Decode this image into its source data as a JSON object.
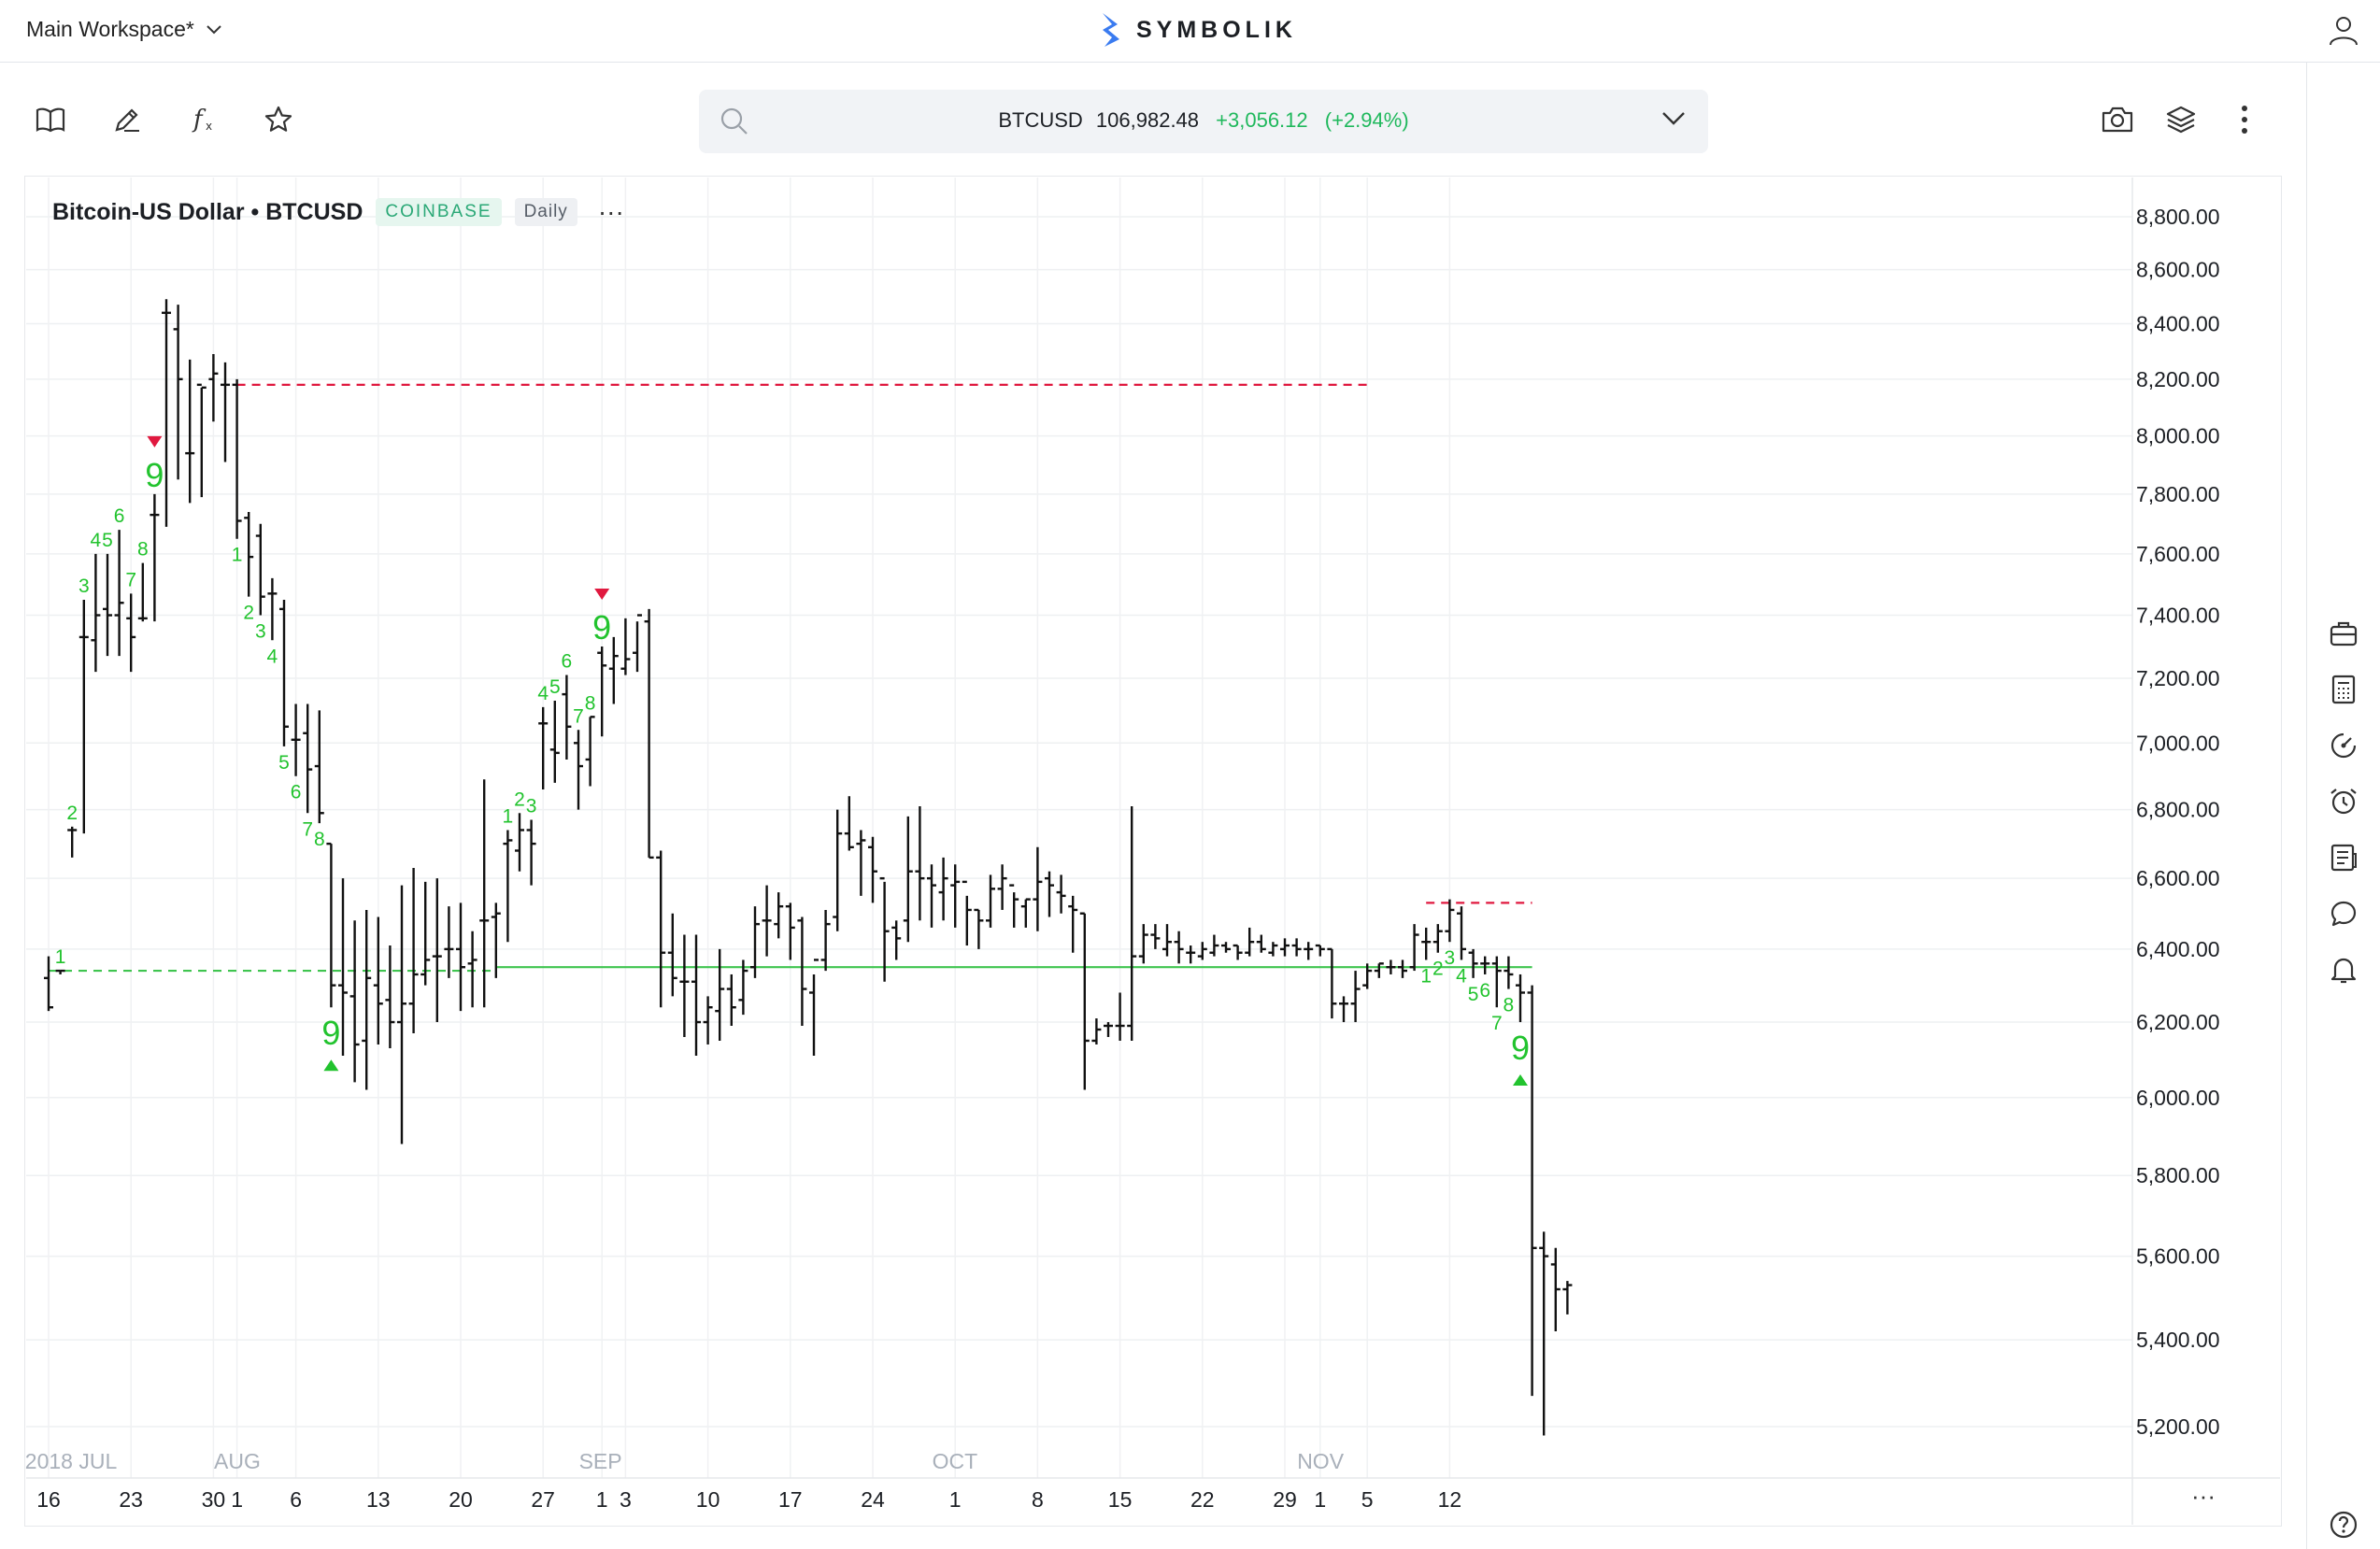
{
  "topbar": {
    "workspace_label": "Main Workspace*",
    "logo_text": "SYMBOLIK"
  },
  "search": {
    "symbol": "BTCUSD",
    "price": "106,982.48",
    "change": "+3,056.12",
    "change_pct": "(+2.94%)"
  },
  "toolbar": {
    "left_icons": [
      "book-icon",
      "pencil-icon",
      "fx-icon",
      "star-icon"
    ],
    "right_icons": [
      "camera-icon",
      "layers-icon",
      "more-vertical-icon"
    ]
  },
  "sidebar": {
    "icons": [
      "briefcase-icon",
      "calculator-icon",
      "gauge-icon",
      "alarm-clock-icon",
      "news-icon",
      "chat-icon",
      "bell-icon",
      "help-icon"
    ]
  },
  "chart_header": {
    "title": "Bitcoin-US Dollar • BTCUSD",
    "exchange": "COINBASE",
    "interval": "Daily",
    "more": "···"
  },
  "colors": {
    "up": "#1fb85c",
    "bar": "#111111",
    "resistance": "#e0193f",
    "support": "#3fc44f",
    "counter": "#22c32e"
  },
  "chart_data": {
    "type": "ohlc",
    "title": "Bitcoin-US Dollar • BTCUSD",
    "interval": "Daily",
    "exchange": "COINBASE",
    "ylim": [
      5100,
      8900
    ],
    "y_ticks": [
      "8,800.00",
      "8,600.00",
      "8,400.00",
      "8,200.00",
      "8,000.00",
      "7,800.00",
      "7,600.00",
      "7,400.00",
      "7,200.00",
      "7,000.00",
      "6,800.00",
      "6,600.00",
      "6,400.00",
      "6,200.00",
      "6,000.00",
      "5,800.00",
      "5,600.00",
      "5,400.00",
      "5,200.00"
    ],
    "y_tick_values": [
      8800,
      8600,
      8400,
      8200,
      8000,
      7800,
      7600,
      7400,
      7200,
      7000,
      6800,
      6600,
      6400,
      6200,
      6000,
      5800,
      5600,
      5400,
      5200
    ],
    "month_labels": [
      {
        "label": "2018 JUL",
        "day": -2
      },
      {
        "label": "AUG",
        "day": 15
      },
      {
        "label": "SEP",
        "day": 46
      },
      {
        "label": "OCT",
        "day": 76
      },
      {
        "label": "NOV",
        "day": 107
      }
    ],
    "day_labels": [
      {
        "label": "16",
        "day": 0
      },
      {
        "label": "23",
        "day": 7
      },
      {
        "label": "30",
        "day": 14
      },
      {
        "label": "1",
        "day": 16
      },
      {
        "label": "6",
        "day": 21
      },
      {
        "label": "13",
        "day": 28
      },
      {
        "label": "20",
        "day": 35
      },
      {
        "label": "27",
        "day": 42
      },
      {
        "label": "1",
        "day": 47
      },
      {
        "label": "3",
        "day": 49
      },
      {
        "label": "10",
        "day": 56
      },
      {
        "label": "17",
        "day": 63
      },
      {
        "label": "24",
        "day": 70
      },
      {
        "label": "1",
        "day": 77
      },
      {
        "label": "8",
        "day": 84
      },
      {
        "label": "15",
        "day": 91
      },
      {
        "label": "22",
        "day": 98
      },
      {
        "label": "29",
        "day": 105
      },
      {
        "label": "1",
        "day": 108
      },
      {
        "label": "5",
        "day": 112
      },
      {
        "label": "12",
        "day": 119
      }
    ],
    "bars": [
      [
        6380,
        6230,
        6320,
        6240
      ],
      [
        6340,
        6330,
        6340,
        6340
      ],
      [
        6750,
        6660,
        6740,
        6740
      ],
      [
        7450,
        6730,
        7330,
        7330
      ],
      [
        7600,
        7220,
        7320,
        7400
      ],
      [
        7600,
        7270,
        7420,
        7400
      ],
      [
        7680,
        7270,
        7400,
        7440
      ],
      [
        7470,
        7220,
        7390,
        7330
      ],
      [
        7570,
        7380,
        7390,
        7390
      ],
      [
        7800,
        7380,
        7730,
        7730
      ],
      [
        8490,
        7690,
        8440,
        8440
      ],
      [
        8470,
        7850,
        8380,
        8200
      ],
      [
        8270,
        7770,
        7940,
        7940
      ],
      [
        8170,
        7790,
        8180,
        8170
      ],
      [
        8290,
        8050,
        8200,
        8220
      ],
      [
        8260,
        7910,
        8180,
        8180
      ],
      [
        8200,
        7650,
        8180,
        7710
      ],
      [
        7740,
        7460,
        7720,
        7590
      ],
      [
        7700,
        7400,
        7660,
        7460
      ],
      [
        7520,
        7320,
        7470,
        7470
      ],
      [
        7450,
        6990,
        7420,
        7050
      ],
      [
        7120,
        6900,
        7010,
        7010
      ],
      [
        7120,
        6790,
        7030,
        6920
      ],
      [
        7100,
        6760,
        6930,
        6790
      ],
      [
        6700,
        6240,
        6700,
        6300
      ],
      [
        6600,
        6110,
        6300,
        6280
      ],
      [
        6480,
        6040,
        6270,
        6140
      ],
      [
        6510,
        6020,
        6150,
        6320
      ],
      [
        6490,
        6140,
        6300,
        6250
      ],
      [
        6410,
        6130,
        6260,
        6200
      ],
      [
        6580,
        5880,
        6200,
        6250
      ],
      [
        6630,
        6170,
        6250,
        6330
      ],
      [
        6590,
        6300,
        6330,
        6370
      ],
      [
        6600,
        6200,
        6380,
        6380
      ],
      [
        6520,
        6320,
        6400,
        6400
      ],
      [
        6530,
        6230,
        6400,
        6350
      ],
      [
        6450,
        6240,
        6360,
        6370
      ],
      [
        6890,
        6240,
        6480,
        6480
      ],
      [
        6530,
        6320,
        6490,
        6500
      ],
      [
        6740,
        6420,
        6700,
        6710
      ],
      [
        6790,
        6620,
        6680,
        6740
      ],
      [
        6770,
        6580,
        6740,
        6700
      ],
      [
        7110,
        6860,
        7060,
        7060
      ],
      [
        7130,
        6880,
        6980,
        6970
      ],
      [
        7210,
        6950,
        7150,
        7050
      ],
      [
        7040,
        6800,
        7000,
        6930
      ],
      [
        7080,
        6870,
        6950,
        7080
      ],
      [
        7300,
        7020,
        7280,
        7240
      ],
      [
        7330,
        7120,
        7230,
        7270
      ],
      [
        7390,
        7210,
        7230,
        7260
      ],
      [
        7380,
        7220,
        7280,
        7400
      ],
      [
        7420,
        6660,
        7380,
        6660
      ],
      [
        6680,
        6240,
        6660,
        6390
      ],
      [
        6500,
        6270,
        6390,
        6320
      ],
      [
        6440,
        6160,
        6310,
        6310
      ],
      [
        6440,
        6110,
        6310,
        6200
      ],
      [
        6270,
        6140,
        6200,
        6240
      ],
      [
        6400,
        6150,
        6230,
        6290
      ],
      [
        6330,
        6190,
        6290,
        6240
      ],
      [
        6370,
        6220,
        6260,
        6340
      ],
      [
        6520,
        6320,
        6350,
        6470
      ],
      [
        6580,
        6380,
        6480,
        6480
      ],
      [
        6560,
        6430,
        6470,
        6520
      ],
      [
        6530,
        6370,
        6520,
        6460
      ],
      [
        6490,
        6190,
        6480,
        6290
      ],
      [
        6330,
        6110,
        6280,
        6370
      ],
      [
        6510,
        6340,
        6370,
        6470
      ],
      [
        6800,
        6450,
        6490,
        6730
      ],
      [
        6840,
        6680,
        6730,
        6690
      ],
      [
        6740,
        6550,
        6700,
        6710
      ],
      [
        6720,
        6530,
        6690,
        6620
      ],
      [
        6590,
        6310,
        6600,
        6450
      ],
      [
        6480,
        6370,
        6460,
        6430
      ],
      [
        6780,
        6420,
        6480,
        6620
      ],
      [
        6810,
        6480,
        6620,
        6600
      ],
      [
        6640,
        6460,
        6600,
        6580
      ],
      [
        6660,
        6480,
        6560,
        6600
      ],
      [
        6640,
        6460,
        6580,
        6590
      ],
      [
        6550,
        6410,
        6590,
        6510
      ],
      [
        6510,
        6400,
        6510,
        6480
      ],
      [
        6610,
        6460,
        6480,
        6570
      ],
      [
        6640,
        6510,
        6570,
        6600
      ],
      [
        6560,
        6460,
        6580,
        6540
      ],
      [
        6540,
        6460,
        6520,
        6540
      ],
      [
        6690,
        6450,
        6540,
        6590
      ],
      [
        6620,
        6490,
        6600,
        6580
      ],
      [
        6610,
        6500,
        6560,
        6550
      ],
      [
        6550,
        6390,
        6520,
        6510
      ],
      [
        6500,
        6020,
        6500,
        6150
      ],
      [
        6210,
        6140,
        6150,
        6180
      ],
      [
        6200,
        6160,
        6190,
        6190
      ],
      [
        6280,
        6150,
        6190,
        6190
      ],
      [
        6810,
        6150,
        6190,
        6380
      ],
      [
        6470,
        6360,
        6380,
        6440
      ],
      [
        6470,
        6400,
        6440,
        6430
      ],
      [
        6470,
        6380,
        6400,
        6420
      ],
      [
        6450,
        6360,
        6420,
        6400
      ],
      [
        6410,
        6360,
        6390,
        6390
      ],
      [
        6420,
        6370,
        6380,
        6400
      ],
      [
        6440,
        6380,
        6390,
        6410
      ],
      [
        6420,
        6390,
        6410,
        6400
      ],
      [
        6410,
        6370,
        6410,
        6390
      ],
      [
        6460,
        6380,
        6390,
        6420
      ],
      [
        6440,
        6390,
        6420,
        6400
      ],
      [
        6420,
        6380,
        6390,
        6410
      ],
      [
        6430,
        6380,
        6400,
        6410
      ],
      [
        6430,
        6380,
        6410,
        6400
      ],
      [
        6420,
        6370,
        6400,
        6400
      ],
      [
        6410,
        6380,
        6410,
        6400
      ],
      [
        6400,
        6210,
        6400,
        6250
      ],
      [
        6270,
        6200,
        6250,
        6250
      ],
      [
        6340,
        6200,
        6250,
        6290
      ],
      [
        6360,
        6290,
        6300,
        6340
      ],
      [
        6360,
        6320,
        6340,
        6360
      ],
      [
        6370,
        6330,
        6350,
        6350
      ],
      [
        6370,
        6320,
        6350,
        6340
      ],
      [
        6470,
        6340,
        6350,
        6440
      ],
      [
        6460,
        6370,
        6420,
        6420
      ],
      [
        6470,
        6390,
        6420,
        6450
      ],
      [
        6540,
        6420,
        6450,
        6510
      ],
      [
        6520,
        6370,
        6500,
        6400
      ],
      [
        6400,
        6320,
        6390,
        6360
      ],
      [
        6380,
        6330,
        6360,
        6360
      ],
      [
        6380,
        6240,
        6360,
        6340
      ],
      [
        6380,
        6290,
        6340,
        6330
      ],
      [
        6330,
        6200,
        6300,
        6280
      ],
      [
        6300,
        5270,
        6280,
        5620
      ],
      [
        5660,
        5180,
        5620,
        5600
      ],
      [
        5620,
        5420,
        5580,
        5520
      ],
      [
        5540,
        5460,
        5520,
        5530
      ]
    ],
    "resistance_levels": [
      {
        "value": 8180,
        "from_day": 16,
        "to_day": 112
      },
      {
        "value": 6530,
        "from_day": 117,
        "to_day": 126
      }
    ],
    "support_levels": [
      {
        "value": 6340,
        "from_day": 0,
        "to_day": 38,
        "dashed": true
      },
      {
        "value": 6350,
        "from_day": 38,
        "to_day": 126,
        "dashed": false
      }
    ],
    "counters": [
      {
        "t": "1",
        "d": 1,
        "pos": "above"
      },
      {
        "t": "2",
        "d": 2,
        "pos": "above"
      },
      {
        "t": "3",
        "d": 3,
        "pos": "above"
      },
      {
        "t": "4",
        "d": 4,
        "pos": "above"
      },
      {
        "t": "5",
        "d": 5,
        "pos": "above"
      },
      {
        "t": "6",
        "d": 6,
        "pos": "above"
      },
      {
        "t": "7",
        "d": 7,
        "pos": "above"
      },
      {
        "t": "8",
        "d": 8,
        "pos": "above"
      },
      {
        "t": "9",
        "d": 9,
        "pos": "above",
        "big": true,
        "arrow": "down"
      },
      {
        "t": "1",
        "d": 16,
        "pos": "below"
      },
      {
        "t": "2",
        "d": 17,
        "pos": "below"
      },
      {
        "t": "3",
        "d": 18,
        "pos": "below"
      },
      {
        "t": "4",
        "d": 19,
        "pos": "below"
      },
      {
        "t": "5",
        "d": 20,
        "pos": "below"
      },
      {
        "t": "6",
        "d": 21,
        "pos": "below"
      },
      {
        "t": "7",
        "d": 22,
        "pos": "below"
      },
      {
        "t": "8",
        "d": 23,
        "pos": "below"
      },
      {
        "t": "9",
        "d": 24,
        "pos": "below",
        "big": true,
        "arrow": "up"
      },
      {
        "t": "1",
        "d": 39,
        "pos": "above"
      },
      {
        "t": "2",
        "d": 40,
        "pos": "above"
      },
      {
        "t": "3",
        "d": 41,
        "pos": "above"
      },
      {
        "t": "4",
        "d": 42,
        "pos": "above"
      },
      {
        "t": "5",
        "d": 43,
        "pos": "above"
      },
      {
        "t": "6",
        "d": 44,
        "pos": "above"
      },
      {
        "t": "7",
        "d": 45,
        "pos": "above"
      },
      {
        "t": "8",
        "d": 46,
        "pos": "above"
      },
      {
        "t": "9",
        "d": 47,
        "pos": "above",
        "big": true,
        "arrow": "down"
      },
      {
        "t": "1",
        "d": 117,
        "pos": "below"
      },
      {
        "t": "2",
        "d": 118,
        "pos": "below"
      },
      {
        "t": "3",
        "d": 119,
        "pos": "below"
      },
      {
        "t": "4",
        "d": 120,
        "pos": "below"
      },
      {
        "t": "5",
        "d": 121,
        "pos": "below"
      },
      {
        "t": "6",
        "d": 122,
        "pos": "below"
      },
      {
        "t": "7",
        "d": 123,
        "pos": "below"
      },
      {
        "t": "8",
        "d": 124,
        "pos": "below"
      },
      {
        "t": "9",
        "d": 125,
        "pos": "below",
        "big": true,
        "arrow": "up"
      }
    ],
    "x_more": "···"
  }
}
